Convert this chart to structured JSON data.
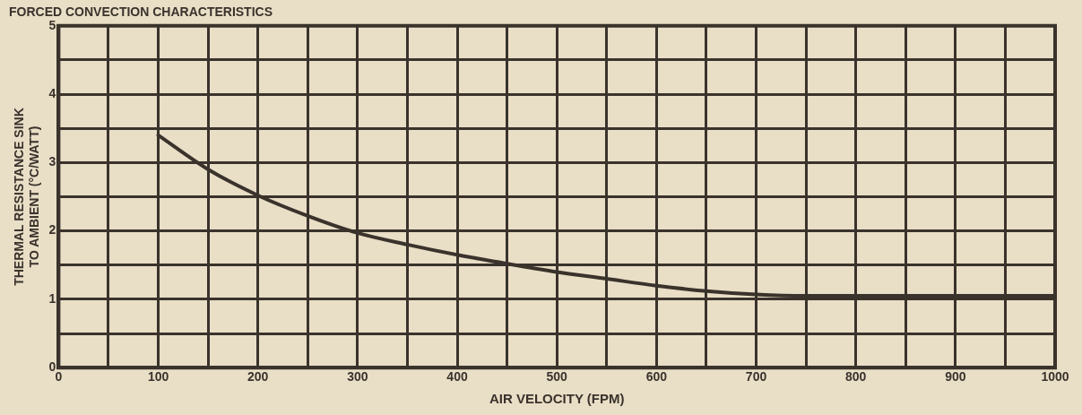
{
  "chart_data": {
    "type": "line",
    "title": "FORCED CONVECTION CHARACTERISTICS",
    "xlabel": "AIR VELOCITY (FPM)",
    "ylabel": "THERMAL RESISTANCE SINK TO AMBIENT (°C/WATT)",
    "x": [
      100,
      150,
      200,
      250,
      300,
      350,
      400,
      450,
      500,
      550,
      600,
      650,
      700,
      750,
      800,
      900,
      1000
    ],
    "series": [
      {
        "color": "#3a332c",
        "values": [
          3.4,
          2.9,
          2.52,
          2.22,
          1.97,
          1.8,
          1.65,
          1.52,
          1.4,
          1.3,
          1.2,
          1.12,
          1.07,
          1.05,
          1.05,
          1.05,
          1.05
        ]
      }
    ],
    "xlim": [
      0,
      1000
    ],
    "ylim": [
      0,
      5
    ],
    "xticks": [
      0,
      {
        "value": 50,
        "label": null
      },
      100,
      {
        "value": 150,
        "label": null
      },
      200,
      {
        "value": 250,
        "label": null
      },
      300,
      {
        "value": 350,
        "label": null
      },
      400,
      {
        "value": 450,
        "label": null
      },
      500,
      {
        "value": 550,
        "label": null
      },
      600,
      {
        "value": 650,
        "label": null
      },
      700,
      {
        "value": 750,
        "label": null
      },
      800,
      {
        "value": 850,
        "label": null
      },
      900,
      {
        "value": 950,
        "label": null
      },
      1000
    ],
    "yticks": [
      0,
      {
        "value": 0.5,
        "label": null
      },
      1,
      {
        "value": 1.5,
        "label": null
      },
      2,
      {
        "value": 2.5,
        "label": null
      },
      3,
      {
        "value": 3.5,
        "label": null
      },
      4,
      {
        "value": 4.5,
        "label": null
      },
      5
    ],
    "grid": true,
    "marker": "none",
    "line_style": "solid",
    "legend": false
  }
}
